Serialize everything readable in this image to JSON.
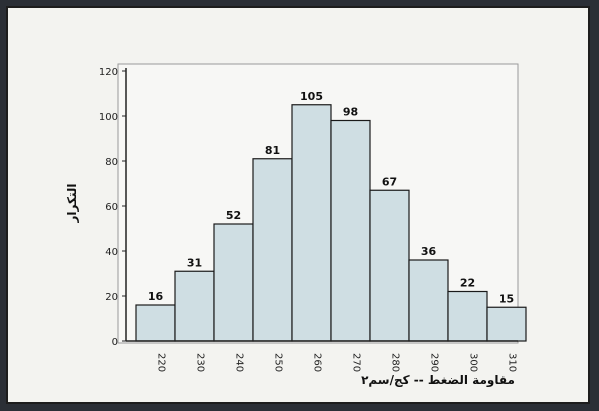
{
  "chart_data": {
    "type": "bar",
    "title": "",
    "xlabel": "مقاومة الضغط -- كج/سم٢",
    "ylabel": "التكرار",
    "categories": [
      "220",
      "230",
      "240",
      "250",
      "260",
      "270",
      "280",
      "290",
      "300",
      "310"
    ],
    "values": [
      16,
      31,
      52,
      81,
      105,
      98,
      67,
      36,
      22,
      15
    ],
    "ylim": [
      0,
      120
    ],
    "yticks": [
      0,
      20,
      40,
      60,
      80,
      100,
      120
    ],
    "grid": false,
    "legend": "none",
    "colors": {
      "bar_fill": "#cfdee3",
      "bar_stroke": "#1a1a1a",
      "plot_bg": "#f7f7f5"
    }
  }
}
